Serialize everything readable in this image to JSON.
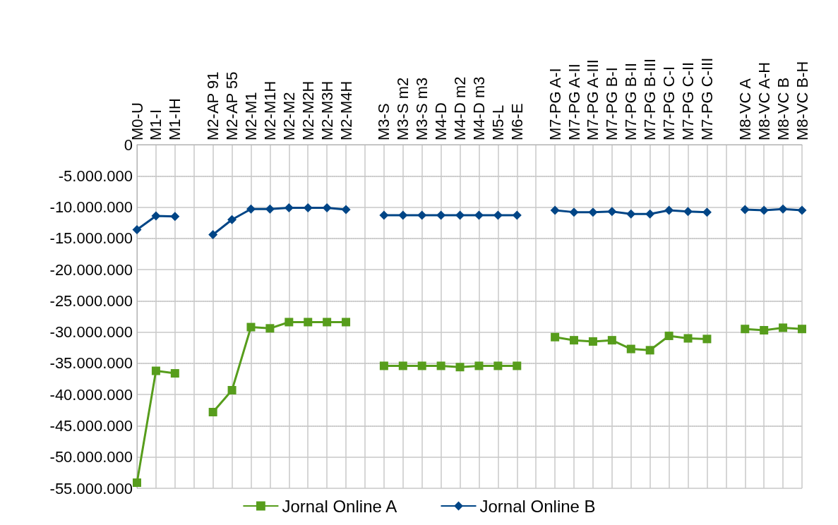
{
  "chart_data": {
    "type": "line",
    "categories": [
      "M0-U",
      "M1-I",
      "M1-IH",
      null,
      "M2-AP 91",
      "M2-AP 55",
      "M2-M1",
      "M2-M1H",
      "M2-M2",
      "M2-M2H",
      "M2-M3H",
      "M2-M4H",
      null,
      "M3-S",
      "M3-S m2",
      "M3-S m3",
      "M4-D",
      "M4-D m2",
      "M4-D m3",
      "M5-L",
      "M6-E",
      null,
      "M7-PG A-I",
      "M7-PG A-II",
      "M7-PG A-III",
      "M7-PG B-I",
      "M7-PG B-II",
      "M7-PG B-III",
      "M7-PG C-I",
      "M7-PG C-II",
      "M7-PG C-III",
      null,
      "M8-VC A",
      "M8-VC A-H",
      "M8-VC B",
      "M8-VC B-H"
    ],
    "series": [
      {
        "name": "Jornal Online A",
        "color": "#579d1c",
        "marker": "square",
        "values": [
          -54100000,
          -36200000,
          -36600000,
          null,
          -42800000,
          -39300000,
          -29200000,
          -29400000,
          -28400000,
          -28400000,
          -28400000,
          -28400000,
          null,
          -35400000,
          -35400000,
          -35400000,
          -35400000,
          -35600000,
          -35400000,
          -35400000,
          -35400000,
          null,
          -30800000,
          -31300000,
          -31500000,
          -31300000,
          -32700000,
          -32900000,
          -30600000,
          -31000000,
          -31100000,
          null,
          -29500000,
          -29700000,
          -29300000,
          -29500000
        ]
      },
      {
        "name": "Jornal Online B",
        "color": "#004586",
        "marker": "diamond",
        "values": [
          -13600000,
          -11400000,
          -11500000,
          null,
          -14400000,
          -12000000,
          -10300000,
          -10300000,
          -10100000,
          -10100000,
          -10100000,
          -10400000,
          null,
          -11300000,
          -11300000,
          -11300000,
          -11300000,
          -11300000,
          -11300000,
          -11300000,
          -11300000,
          null,
          -10500000,
          -10800000,
          -10800000,
          -10700000,
          -11100000,
          -11100000,
          -10500000,
          -10700000,
          -10800000,
          null,
          -10400000,
          -10500000,
          -10300000,
          -10500000
        ]
      }
    ],
    "ylim": [
      -55000000,
      0
    ],
    "yticks": [
      0,
      {
        "value": -5000000,
        "label": "-5.000.000"
      },
      {
        "value": -10000000,
        "label": "-10.000.000"
      },
      {
        "value": -15000000,
        "label": "-15.000.000"
      },
      {
        "value": -20000000,
        "label": "-20.000.000"
      },
      {
        "value": -25000000,
        "label": "-25.000.000"
      },
      {
        "value": -30000000,
        "label": "-30.000.000"
      },
      {
        "value": -35000000,
        "label": "-35.000.000"
      },
      {
        "value": -40000000,
        "label": "-40.000.000"
      },
      {
        "value": -45000000,
        "label": "-45.000.000"
      },
      {
        "value": -50000000,
        "label": "-50.000.000"
      },
      {
        "value": -55000000,
        "label": "-55.000.000"
      }
    ],
    "grid": true,
    "legend": "bottom"
  }
}
